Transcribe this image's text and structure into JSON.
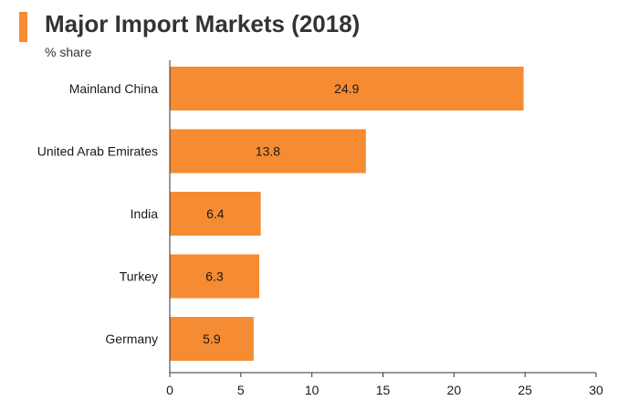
{
  "title": "Major Import Markets (2018)",
  "subtitle": "% share",
  "colors": {
    "bar": "#f58b32",
    "accent": "#f58b32",
    "axis": "#333333"
  },
  "chart_data": {
    "type": "bar",
    "orientation": "horizontal",
    "title": "Major Import Markets (2018)",
    "subtitle": "% share",
    "categories": [
      "Mainland China",
      "United Arab Emirates",
      "India",
      "Turkey",
      "Germany"
    ],
    "values": [
      24.9,
      13.8,
      6.4,
      6.3,
      5.9
    ],
    "data_labels": [
      "24.9",
      "13.8",
      "6.4",
      "6.3",
      "5.9"
    ],
    "xlim": [
      0,
      30
    ],
    "xticks": [
      0,
      5,
      10,
      15,
      20,
      25,
      30
    ],
    "grid": false,
    "legend": "none"
  }
}
